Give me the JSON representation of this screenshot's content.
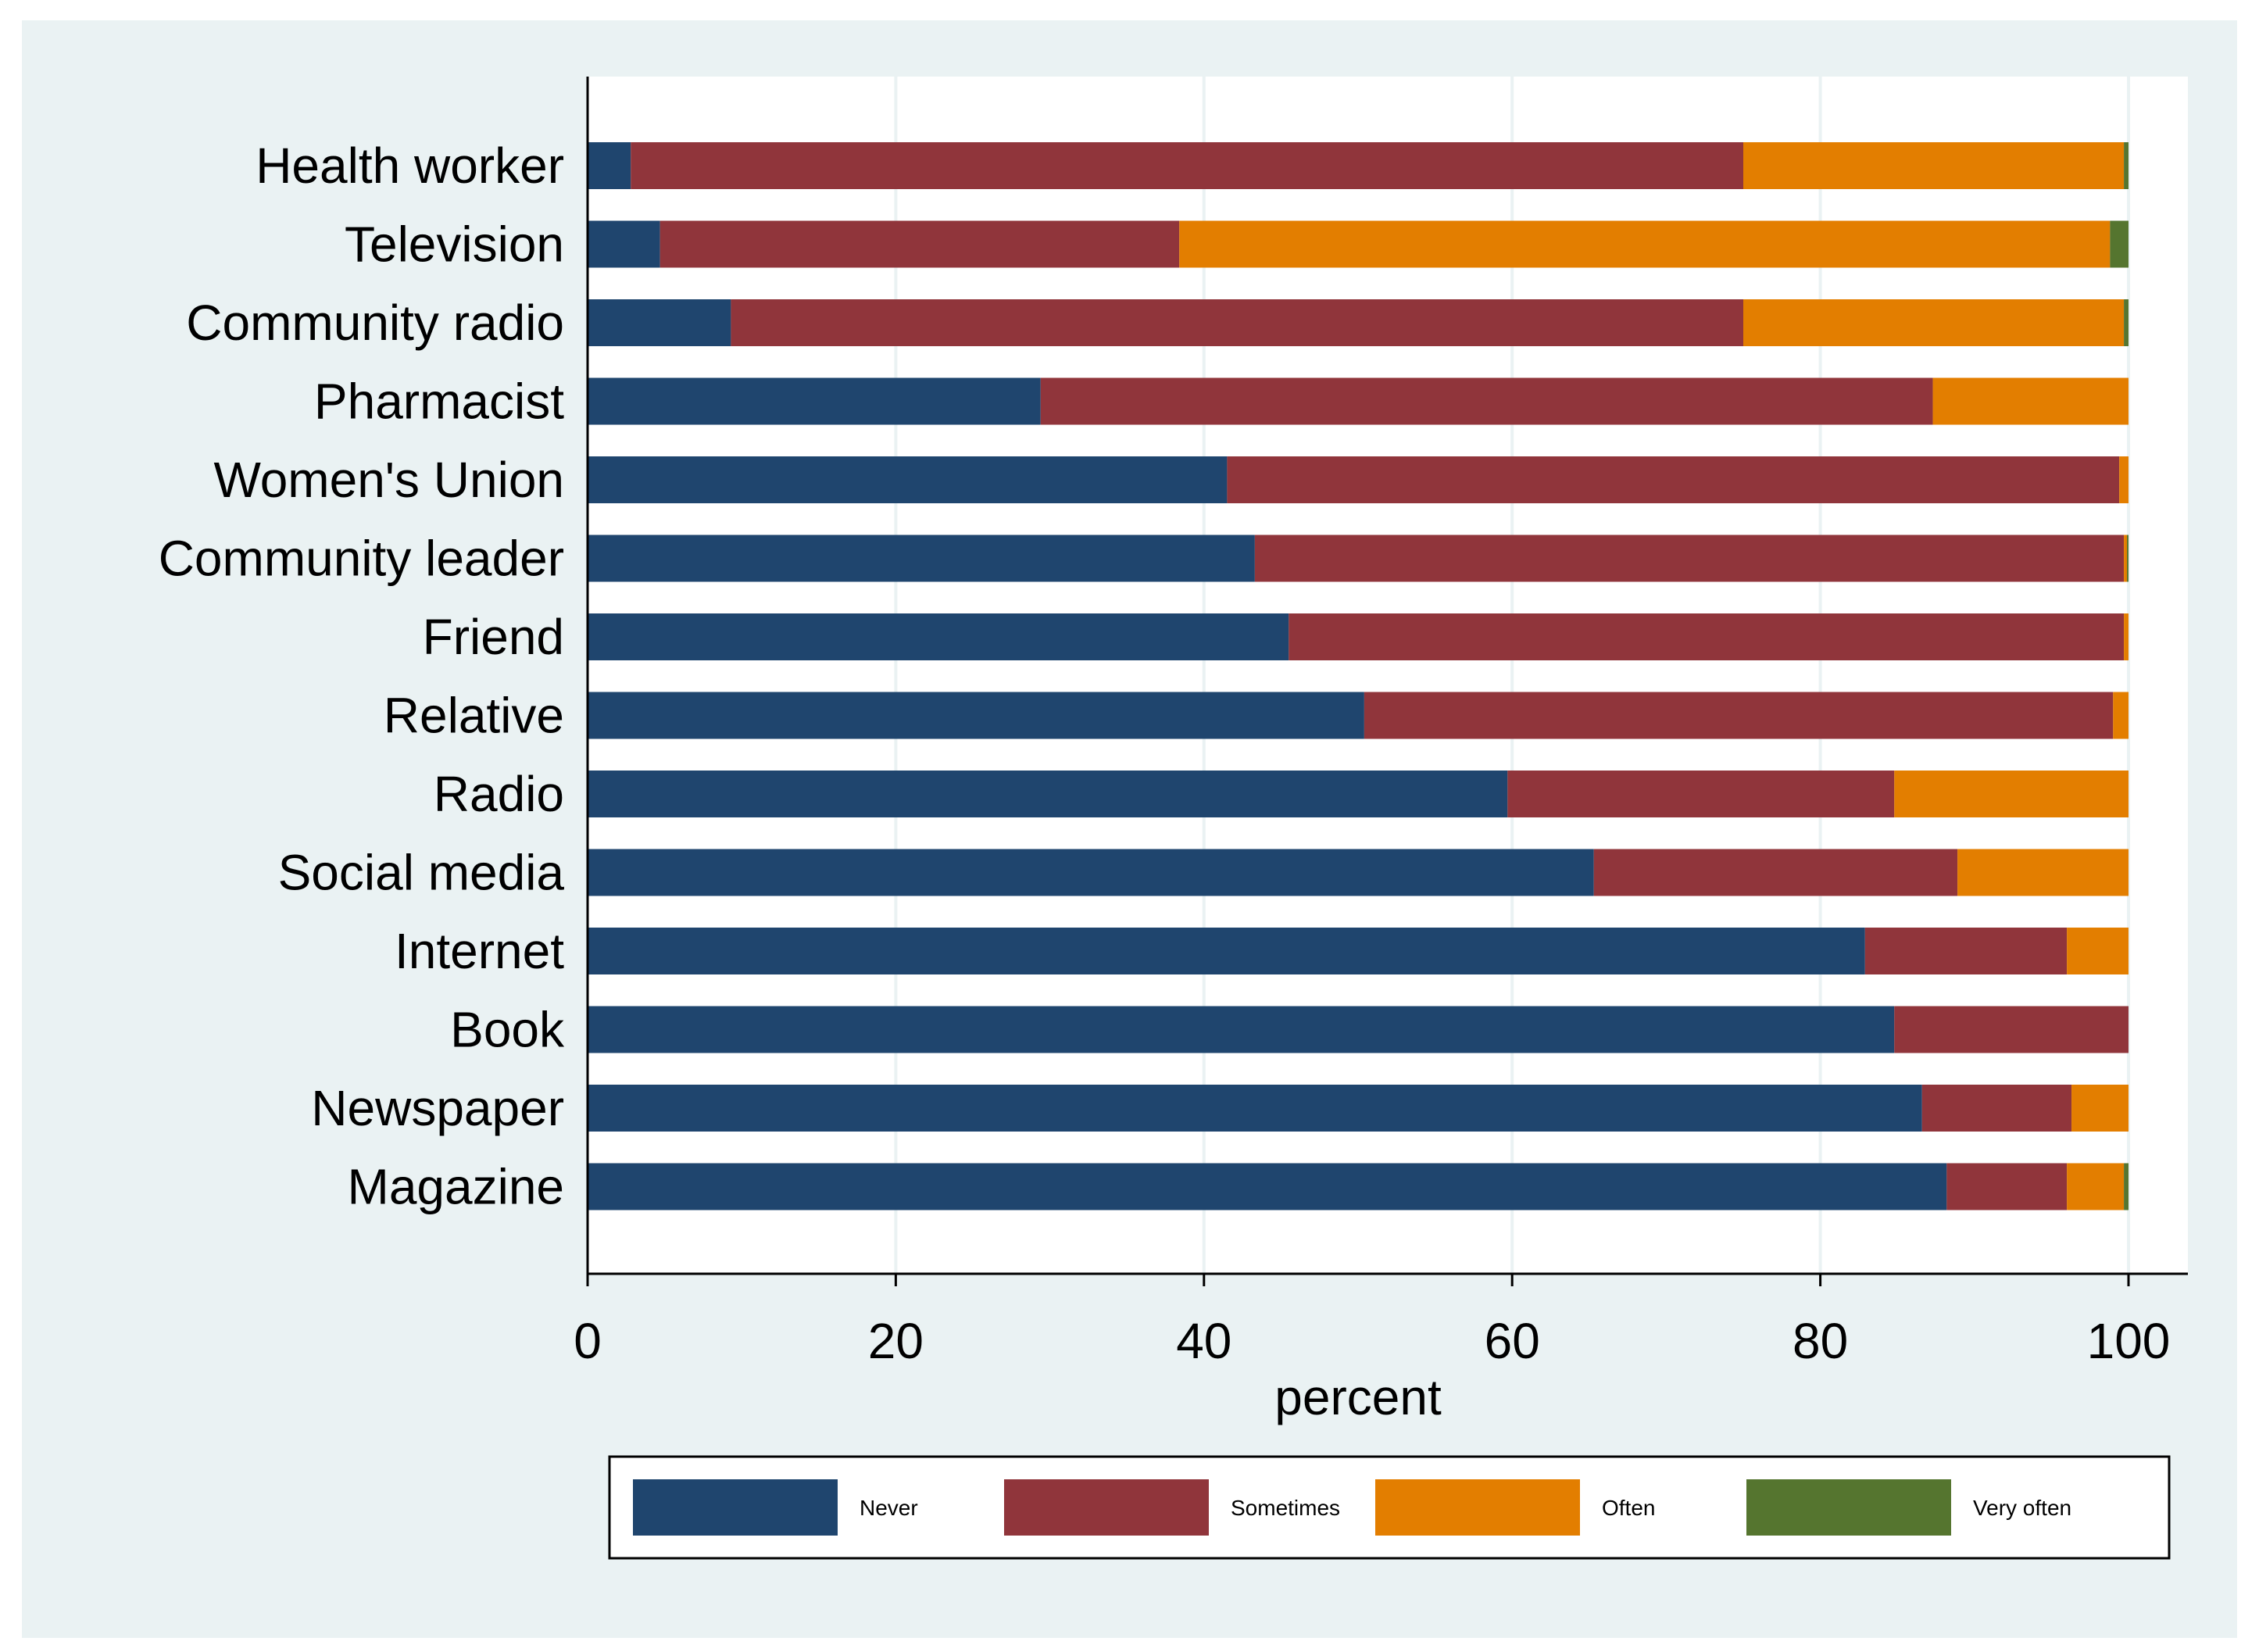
{
  "chart_data": {
    "type": "bar",
    "orientation": "horizontal",
    "stacked": true,
    "title": "",
    "xlabel": "percent",
    "ylabel": "",
    "xlim": [
      0,
      100
    ],
    "xticks": [
      "0",
      "20",
      "40",
      "60",
      "80",
      "100"
    ],
    "grid": true,
    "legend_position": "bottom",
    "categories": [
      "Health worker",
      "Television",
      "Community radio",
      "Pharmacist",
      "Women's Union",
      "Community leader",
      "Friend",
      "Relative",
      "Radio",
      "Social media",
      "Internet",
      "Book",
      "Newspaper",
      "Magazine"
    ],
    "series": [
      {
        "name": "Never",
        "color": "#1f456e",
        "values": [
          2.8,
          4.7,
          9.3,
          29.4,
          41.5,
          43.3,
          45.5,
          50.4,
          59.7,
          65.3,
          82.9,
          84.8,
          86.6,
          88.2
        ]
      },
      {
        "name": "Sometimes",
        "color": "#90353b",
        "values": [
          72.2,
          33.7,
          65.7,
          57.9,
          57.9,
          56.4,
          54.2,
          48.6,
          25.1,
          23.6,
          13.1,
          15.2,
          9.7,
          7.8
        ]
      },
      {
        "name": "Often",
        "color": "#e37e00",
        "values": [
          24.7,
          60.4,
          24.7,
          12.7,
          0.6,
          0.2,
          0.3,
          1.0,
          15.2,
          11.1,
          4.0,
          0.0,
          3.7,
          3.7
        ]
      },
      {
        "name": "Very often",
        "color": "#55752f",
        "values": [
          0.3,
          1.2,
          0.3,
          0.0,
          0.0,
          0.1,
          0.0,
          0.0,
          0.0,
          0.0,
          0.0,
          0.0,
          0.0,
          0.3
        ]
      }
    ]
  }
}
